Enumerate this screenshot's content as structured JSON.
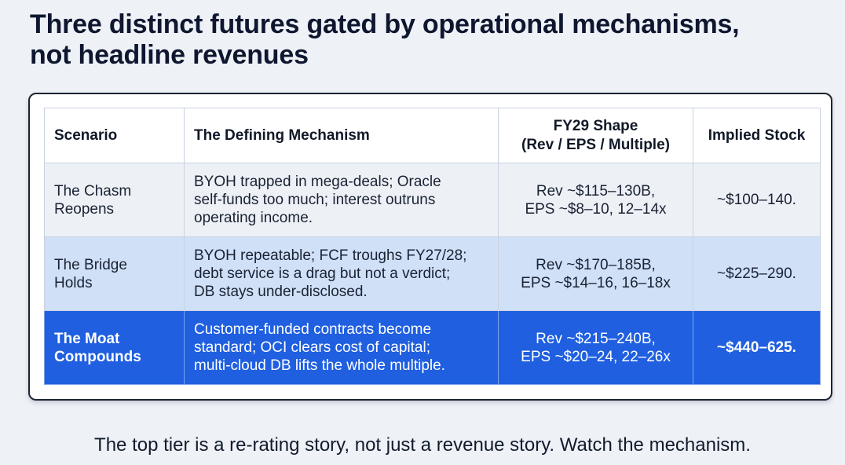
{
  "title": "Three distinct futures gated by operational mechanisms,\nnot headline revenues",
  "table": {
    "headers": [
      "Scenario",
      "The Defining Mechanism",
      "FY29 Shape\n(Rev / EPS / Multiple)",
      "Implied Stock"
    ],
    "rows": [
      {
        "scenario": "The Chasm\nReopens",
        "mechanism": "BYOH trapped in mega-deals; Oracle\nself-funds too much; interest outruns\noperating income.",
        "shape": "Rev ~$115–130B,\nEPS ~$8–10, 12–14x",
        "stock": "~$100–140."
      },
      {
        "scenario": "The Bridge\nHolds",
        "mechanism": "BYOH repeatable; FCF troughs FY27/28;\ndebt service is a drag but not a verdict;\nDB stays under-disclosed.",
        "shape": "Rev ~$170–185B,\nEPS ~$14–16, 16–18x",
        "stock": "~$225–290."
      },
      {
        "scenario": "The Moat\nCompounds",
        "mechanism": "Customer-funded contracts become\nstandard; OCI clears cost of capital;\nmulti-cloud DB lifts the whole multiple.",
        "shape": "Rev ~$215–240B,\nEPS ~$20–24, 22–26x",
        "stock": "~$440–625."
      }
    ]
  },
  "footer": "The top tier is a re-rating story, not just a revenue story. Watch the mechanism.",
  "colors": {
    "background": "#eef2f7",
    "row_neutral": "#edf1f6",
    "row_light_blue": "#cfe0f7",
    "row_highlight": "#1f5fe0"
  }
}
